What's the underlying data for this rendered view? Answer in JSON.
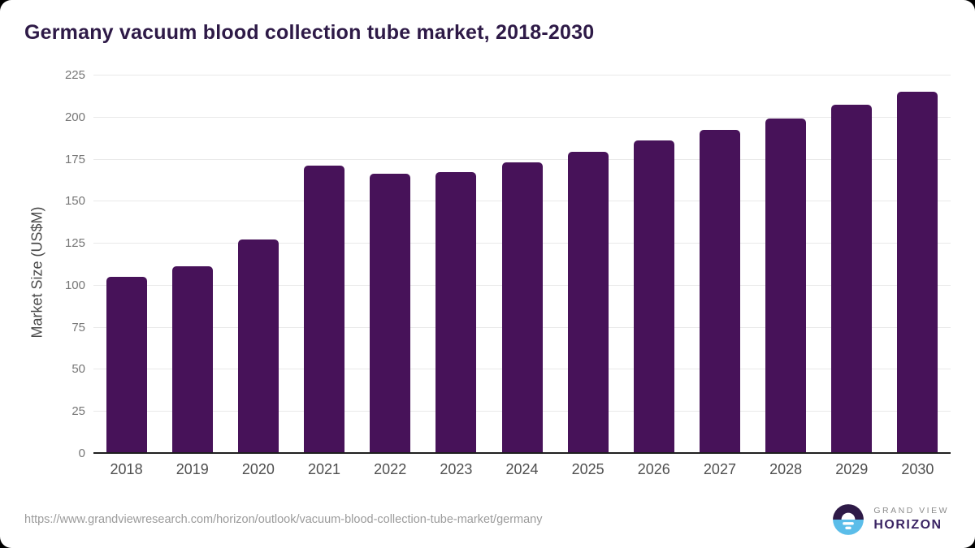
{
  "chart": {
    "title": "Germany vacuum blood collection tube market, 2018-2030",
    "ylabel": "Market Size (US$M)"
  },
  "chart_data": {
    "type": "bar",
    "title": "Germany vacuum blood collection tube market, 2018-2030",
    "xlabel": "",
    "ylabel": "Market Size (US$M)",
    "categories": [
      "2018",
      "2019",
      "2020",
      "2021",
      "2022",
      "2023",
      "2024",
      "2025",
      "2026",
      "2027",
      "2028",
      "2029",
      "2030"
    ],
    "values": [
      105,
      111,
      127,
      171,
      166,
      167,
      173,
      179,
      186,
      192,
      199,
      207,
      215
    ],
    "ylim": [
      0,
      225
    ],
    "yticks": [
      0,
      25,
      50,
      75,
      100,
      125,
      150,
      175,
      200,
      225
    ],
    "grid": "horizontal",
    "legend": "none",
    "bar_color": "#471259"
  },
  "footer": {
    "source_url": "https://www.grandviewresearch.com/horizon/outlook/vacuum-blood-collection-tube-market/germany",
    "logo_top": "GRAND VIEW",
    "logo_bottom": "HORIZON"
  },
  "colors": {
    "bar": "#471259",
    "title": "#2e1a47",
    "grid": "#e9e9e9",
    "axis": "#1f1f1f",
    "logo_purple": "#2e1a47",
    "logo_blue": "#5bbde9"
  }
}
